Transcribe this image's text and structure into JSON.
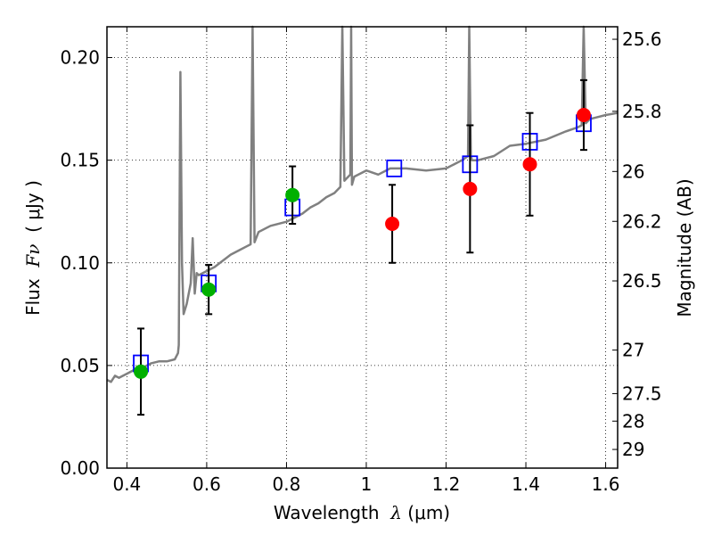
{
  "chart_data": {
    "type": "scatter",
    "xlabel": {
      "prefix": "Wavelength  ",
      "symbol": "λ",
      "unit": " (μm)"
    },
    "ylabel": {
      "prefix": "Flux  ",
      "symbol": "Fν",
      "unit": "  ( μJy )"
    },
    "y2label": "Magnitude (AB)",
    "xlim": [
      0.35,
      1.63
    ],
    "ylim": [
      0.0,
      0.215
    ],
    "xticks": [
      0.4,
      0.6,
      0.8,
      1.0,
      1.2,
      1.4,
      1.6
    ],
    "xtick_labels": [
      "0.4",
      "0.6",
      "0.8",
      "1",
      "1.2",
      "1.4",
      "1.6"
    ],
    "yticks": [
      0.0,
      0.05,
      0.1,
      0.15,
      0.2
    ],
    "ytick_labels": [
      "0.00",
      "0.05",
      "0.10",
      "0.15",
      "0.20"
    ],
    "mag_ticks": [
      {
        "label": "25.6",
        "flux": 0.2089
      },
      {
        "label": "25.8",
        "flux": 0.1738
      },
      {
        "label": "26",
        "flux": 0.1445
      },
      {
        "label": "26.2",
        "flux": 0.1202
      },
      {
        "label": "26.5",
        "flux": 0.0912
      },
      {
        "label": "27",
        "flux": 0.0575
      },
      {
        "label": "27.5",
        "flux": 0.0363
      },
      {
        "label": "28",
        "flux": 0.0229
      },
      {
        "label": "29",
        "flux": 0.0091
      }
    ],
    "grid": true,
    "model_sed": {
      "name": "model spectrum",
      "color": "#808080",
      "x": [
        0.35,
        0.36,
        0.37,
        0.38,
        0.4,
        0.42,
        0.44,
        0.46,
        0.48,
        0.5,
        0.52,
        0.528,
        0.53,
        0.534,
        0.538,
        0.542,
        0.55,
        0.56,
        0.565,
        0.57,
        0.575,
        0.58,
        0.6,
        0.62,
        0.64,
        0.66,
        0.68,
        0.7,
        0.71,
        0.715,
        0.72,
        0.73,
        0.76,
        0.8,
        0.84,
        0.86,
        0.88,
        0.9,
        0.92,
        0.935,
        0.94,
        0.945,
        0.95,
        0.955,
        0.96,
        0.962,
        0.964,
        0.97,
        1.0,
        1.03,
        1.06,
        1.1,
        1.15,
        1.2,
        1.24,
        1.255,
        1.258,
        1.262,
        1.265,
        1.28,
        1.32,
        1.36,
        1.4,
        1.45,
        1.5,
        1.53,
        1.54,
        1.545,
        1.55,
        1.56,
        1.58,
        1.6,
        1.63
      ],
      "y": [
        0.043,
        0.042,
        0.045,
        0.044,
        0.046,
        0.048,
        0.049,
        0.051,
        0.052,
        0.052,
        0.053,
        0.056,
        0.06,
        0.193,
        0.1,
        0.075,
        0.08,
        0.09,
        0.112,
        0.085,
        0.095,
        0.094,
        0.096,
        0.098,
        0.101,
        0.104,
        0.106,
        0.108,
        0.109,
        0.215,
        0.11,
        0.115,
        0.118,
        0.12,
        0.124,
        0.127,
        0.129,
        0.132,
        0.134,
        0.137,
        0.215,
        0.14,
        0.141,
        0.142,
        0.143,
        0.215,
        0.138,
        0.142,
        0.145,
        0.143,
        0.146,
        0.146,
        0.145,
        0.146,
        0.15,
        0.152,
        0.215,
        0.152,
        0.15,
        0.15,
        0.152,
        0.157,
        0.158,
        0.16,
        0.164,
        0.166,
        0.167,
        0.215,
        0.168,
        0.17,
        0.171,
        0.172,
        0.173
      ]
    },
    "model_points": {
      "name": "model photometry",
      "color": "#0000ff",
      "x": [
        0.435,
        0.605,
        0.815,
        1.07,
        1.26,
        1.41,
        1.545
      ],
      "y": [
        0.051,
        0.09,
        0.127,
        0.146,
        0.148,
        0.159,
        0.168
      ]
    },
    "observed": [
      {
        "x": 0.435,
        "y": 0.047,
        "err": 0.021,
        "color": "#00b000"
      },
      {
        "x": 0.605,
        "y": 0.087,
        "err": 0.012,
        "color": "#00b000"
      },
      {
        "x": 0.815,
        "y": 0.133,
        "err": 0.014,
        "color": "#00b000"
      },
      {
        "x": 1.065,
        "y": 0.119,
        "err": 0.019,
        "color": "#ff0000"
      },
      {
        "x": 1.26,
        "y": 0.136,
        "err": 0.031,
        "color": "#ff0000"
      },
      {
        "x": 1.41,
        "y": 0.148,
        "err": 0.025,
        "color": "#ff0000"
      },
      {
        "x": 1.545,
        "y": 0.172,
        "err": 0.017,
        "color": "#ff0000"
      }
    ]
  }
}
